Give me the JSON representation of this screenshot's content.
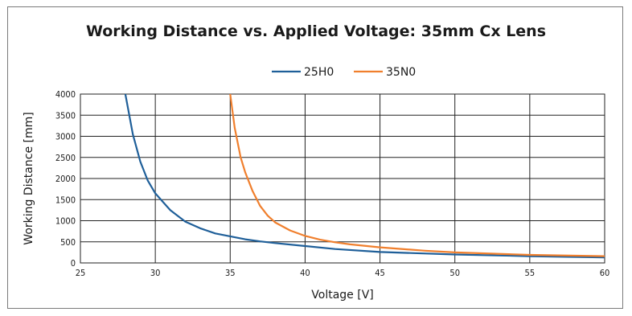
{
  "chart_data": {
    "type": "line",
    "title": "Working Distance vs. Applied Voltage: 35mm Cx Lens",
    "xlabel": "Voltage [V]",
    "ylabel": "Working Distance [mm]",
    "xlim": [
      25,
      60
    ],
    "ylim": [
      0,
      4000
    ],
    "xticks": [
      25,
      30,
      35,
      40,
      45,
      50,
      55,
      60
    ],
    "yticks": [
      0,
      500,
      1000,
      1500,
      2000,
      2500,
      3000,
      3500,
      4000
    ],
    "grid": true,
    "legend_position": "top-center",
    "series": [
      {
        "name": "25H0",
        "color": "#1f5f99",
        "x": [
          28,
          28.5,
          29,
          29.5,
          30,
          31,
          32,
          33,
          34,
          35,
          36,
          37,
          38,
          40,
          42,
          45,
          50,
          55,
          60
        ],
        "y": [
          4000,
          3050,
          2400,
          1950,
          1650,
          1250,
          980,
          820,
          700,
          630,
          560,
          510,
          470,
          400,
          330,
          260,
          200,
          160,
          130
        ]
      },
      {
        "name": "35N0",
        "color": "#f07f2d",
        "x": [
          35,
          35.3,
          35.7,
          36,
          36.5,
          37,
          37.5,
          38,
          39,
          40,
          41,
          42,
          43,
          45,
          48,
          50,
          55,
          60
        ],
        "y": [
          4000,
          3200,
          2500,
          2150,
          1700,
          1350,
          1120,
          960,
          770,
          640,
          550,
          490,
          440,
          370,
          290,
          250,
          190,
          160
        ]
      }
    ]
  }
}
